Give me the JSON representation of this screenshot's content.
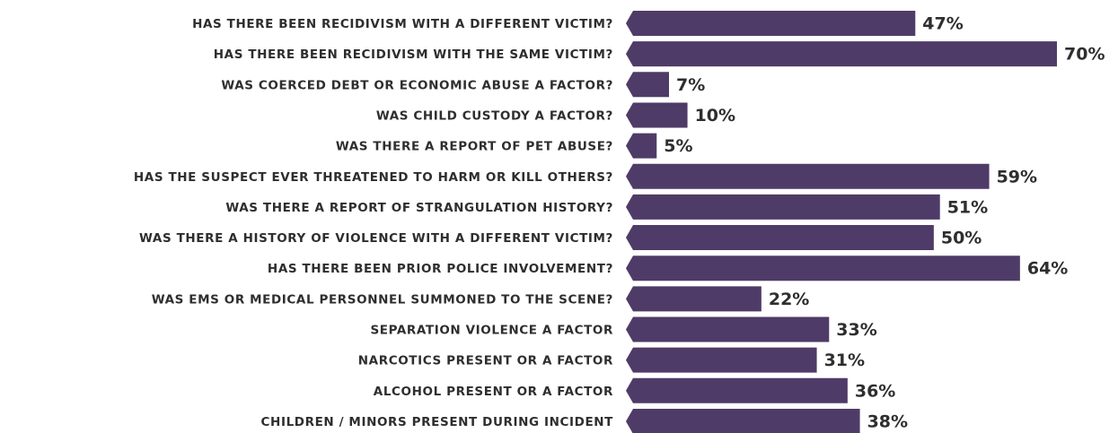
{
  "chart_data": {
    "type": "bar",
    "orientation": "horizontal",
    "categories": [
      "HAS THERE BEEN RECIDIVISM WITH A DIFFERENT VICTIM?",
      "HAS THERE BEEN RECIDIVISM WITH THE SAME VICTIM?",
      "WAS COERCED DEBT OR ECONOMIC ABUSE A FACTOR?",
      "WAS CHILD CUSTODY A FACTOR?",
      "WAS THERE A REPORT OF PET ABUSE?",
      "HAS THE SUSPECT EVER THREATENED TO HARM OR KILL OTHERS?",
      "WAS THERE A REPORT OF STRANGULATION HISTORY?",
      "WAS THERE A HISTORY OF VIOLENCE WITH A DIFFERENT VICTIM?",
      "HAS THERE BEEN PRIOR POLICE INVOLVEMENT?",
      "WAS EMS OR MEDICAL PERSONNEL SUMMONED TO THE SCENE?",
      "SEPARATION VIOLENCE A FACTOR",
      "NARCOTICS PRESENT OR A FACTOR",
      "ALCOHOL PRESENT OR A FACTOR",
      "CHILDREN / MINORS PRESENT DURING INCIDENT"
    ],
    "values": [
      47,
      70,
      7,
      10,
      5,
      59,
      51,
      50,
      64,
      22,
      33,
      31,
      36,
      38
    ],
    "value_labels": [
      "47%",
      "70%",
      "7%",
      "10%",
      "5%",
      "59%",
      "51%",
      "50%",
      "64%",
      "22%",
      "33%",
      "31%",
      "36%",
      "38%"
    ],
    "color": "#4f3b67"
  }
}
